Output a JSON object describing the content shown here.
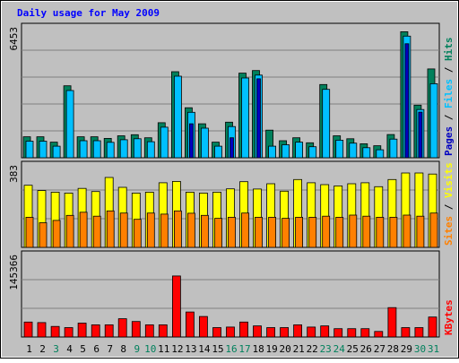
{
  "chart_data": [
    {
      "type": "bar",
      "panel": "hits-files-pages",
      "title": "Daily usage for May 2009",
      "ytick_label": "6453",
      "ymax": 6453,
      "categories": [
        "1",
        "2",
        "3",
        "4",
        "5",
        "6",
        "7",
        "8",
        "9",
        "10",
        "11",
        "12",
        "13",
        "14",
        "15",
        "16",
        "17",
        "18",
        "19",
        "20",
        "21",
        "22",
        "23",
        "24",
        "25",
        "26",
        "27",
        "28",
        "29",
        "30",
        "31"
      ],
      "weekend_days": [
        "3",
        "9",
        "10",
        "16",
        "17",
        "23",
        "24",
        "30",
        "31"
      ],
      "series": [
        {
          "name": "Hits",
          "color": "#00805c",
          "values": [
            1050,
            1050,
            780,
            3600,
            1050,
            1050,
            970,
            1100,
            1150,
            1000,
            1750,
            4300,
            2500,
            1700,
            780,
            1780,
            4230,
            4360,
            1380,
            850,
            1000,
            750,
            3660,
            1100,
            950,
            700,
            600,
            1160,
            6300,
            2630,
            4440
          ]
        },
        {
          "name": "Files",
          "color": "#00c0ff",
          "values": [
            830,
            830,
            580,
            3360,
            850,
            850,
            770,
            900,
            950,
            800,
            1530,
            4080,
            2270,
            1480,
            580,
            1560,
            3990,
            4130,
            580,
            650,
            780,
            550,
            3420,
            880,
            730,
            500,
            400,
            930,
            6080,
            2410,
            3700
          ]
        },
        {
          "name": "Pages",
          "color": "#0000c0",
          "values": [
            20,
            20,
            20,
            20,
            20,
            20,
            20,
            20,
            20,
            20,
            20,
            20,
            1700,
            20,
            20,
            1000,
            20,
            3950,
            20,
            20,
            20,
            20,
            20,
            20,
            20,
            20,
            20,
            20,
            5700,
            2280,
            20
          ]
        }
      ],
      "legend": [
        "Pages",
        "Files",
        "Hits"
      ],
      "legend_separator": " / "
    },
    {
      "type": "bar",
      "panel": "visits-sites",
      "ytick_label": "383",
      "ymax": 383,
      "series": [
        {
          "name": "Visits",
          "color": "#ffff00",
          "values": [
            295,
            270,
            262,
            258,
            280,
            265,
            332,
            285,
            258,
            262,
            307,
            313,
            262,
            258,
            262,
            278,
            312,
            277,
            302,
            267,
            322,
            307,
            298,
            292,
            302,
            307,
            288,
            322,
            353,
            353,
            348
          ]
        },
        {
          "name": "Sites",
          "color": "#ff8000",
          "values": [
            143,
            117,
            128,
            152,
            167,
            148,
            173,
            163,
            133,
            163,
            158,
            173,
            162,
            152,
            138,
            143,
            163,
            143,
            143,
            138,
            143,
            143,
            148,
            143,
            153,
            148,
            143,
            143,
            153,
            148,
            163
          ]
        }
      ],
      "legend": [
        "Sites",
        "Visits"
      ],
      "legend_separator": " / "
    },
    {
      "type": "bar",
      "panel": "kbytes",
      "ytick_label": "145366",
      "ymax": 145366,
      "series": [
        {
          "name": "KBytes",
          "color": "#ff0000",
          "values": [
            27000,
            26000,
            19000,
            17000,
            25000,
            22000,
            22000,
            33000,
            28000,
            22000,
            22000,
            110000,
            45000,
            37000,
            17000,
            18000,
            27000,
            20000,
            17000,
            17000,
            22000,
            18000,
            20000,
            15000,
            15000,
            15000,
            10000,
            53000,
            17000,
            17000,
            36000
          ]
        }
      ],
      "legend": [
        "KBytes"
      ]
    }
  ],
  "colors": {
    "background": "#c0c0c0",
    "title": "#0000ff",
    "weekday_label": "#000000",
    "weekend_label": "#00805c",
    "grid": "#808080",
    "panel_border": "#000000"
  }
}
